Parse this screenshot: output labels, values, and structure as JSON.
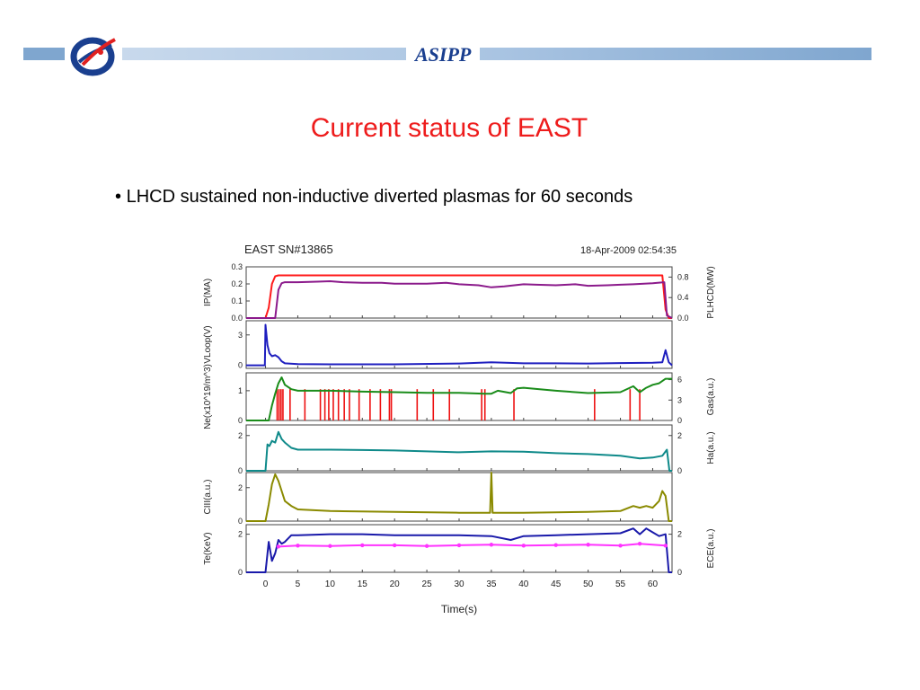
{
  "header": {
    "org": "ASIPP",
    "logo_icon": "asipp-logo-icon",
    "bar_color": "#7fa6cf"
  },
  "slide": {
    "title": "Current status of EAST",
    "bullet_marker": "•",
    "bullet_text": "LHCD sustained non-inductive diverted plasmas for 60 seconds"
  },
  "chart_data": {
    "type": "line",
    "title": "EAST SN#13865",
    "timestamp": "18-Apr-2009 02:54:35",
    "xlabel": "Time(s)",
    "xlim": [
      -3,
      63
    ],
    "x_ticks": [
      0,
      5,
      10,
      15,
      20,
      25,
      30,
      35,
      40,
      45,
      50,
      55,
      60
    ],
    "panels": [
      {
        "left_label": "IP(MA)",
        "right_label": "PLHCD(MW)",
        "left_ticks": [
          "0.0",
          "0.1",
          "0.2",
          "0.3"
        ],
        "right_ticks": [
          "0.0",
          "0.4",
          "0.8"
        ],
        "ylim_left": [
          0,
          0.3
        ],
        "ylim_right": [
          0,
          1.0
        ],
        "series": [
          {
            "axis": "left",
            "color": "#ff1a1a",
            "x": [
              -3,
              0,
              0.5,
              1,
              1.5,
              2,
              2.5,
              3,
              10,
              20,
              30,
              40,
              50,
              60,
              61.5,
              62,
              62.5,
              63
            ],
            "y": [
              0,
              0,
              0.06,
              0.2,
              0.245,
              0.25,
              0.25,
              0.25,
              0.25,
              0.25,
              0.25,
              0.25,
              0.25,
              0.25,
              0.25,
              0.05,
              0,
              0
            ]
          },
          {
            "axis": "right",
            "color": "#8b1a8b",
            "x": [
              -3,
              1.5,
              2,
              2.5,
              3,
              5,
              8,
              10,
              12,
              15,
              18,
              20,
              25,
              28,
              30,
              33,
              35,
              37,
              40,
              42,
              45,
              48,
              50,
              53,
              55,
              57,
              60,
              61.8,
              62.2,
              63
            ],
            "y": [
              0,
              0,
              0.55,
              0.68,
              0.7,
              0.7,
              0.71,
              0.72,
              0.7,
              0.69,
              0.69,
              0.67,
              0.67,
              0.69,
              0.66,
              0.64,
              0.6,
              0.62,
              0.66,
              0.65,
              0.64,
              0.66,
              0.63,
              0.64,
              0.65,
              0.66,
              0.68,
              0.7,
              0.05,
              0
            ]
          }
        ]
      },
      {
        "left_label": "VLoop(V)",
        "right_label": "",
        "left_ticks": [
          "0",
          "3"
        ],
        "right_ticks": [],
        "ylim_left": [
          -0.3,
          4.4
        ],
        "ylim_right": [
          0,
          1
        ],
        "series": [
          {
            "axis": "left",
            "color": "#1f1fbf",
            "x": [
              -3,
              -0.1,
              0,
              0.3,
              0.6,
              1,
              1.5,
              2,
              2.5,
              3,
              5,
              10,
              20,
              30,
              35,
              40,
              45,
              50,
              55,
              60,
              61.5,
              62,
              62.5,
              63
            ],
            "y": [
              0,
              0,
              4.0,
              2.0,
              1.2,
              0.9,
              1.0,
              0.8,
              0.4,
              0.2,
              0.12,
              0.1,
              0.1,
              0.18,
              0.3,
              0.2,
              0.2,
              0.18,
              0.22,
              0.25,
              0.3,
              1.5,
              0.3,
              0
            ]
          }
        ]
      },
      {
        "left_label": "Ne(x10^19/m^3)",
        "right_label": "Gas(a.u.)",
        "left_ticks": [
          "0",
          "1"
        ],
        "right_ticks": [
          "0",
          "3",
          "6"
        ],
        "ylim_left": [
          0,
          1.6
        ],
        "ylim_right": [
          0,
          7
        ],
        "series": [
          {
            "axis": "left",
            "color": "#1a8c1a",
            "x": [
              -3,
              0.5,
              1,
              1.5,
              2,
              2.5,
              3,
              4,
              5,
              10,
              15,
              20,
              25,
              30,
              34,
              35,
              36,
              38,
              39,
              40,
              45,
              50,
              55,
              57,
              58,
              59,
              60,
              61,
              62,
              63
            ],
            "y": [
              0,
              0,
              0.5,
              0.9,
              1.25,
              1.45,
              1.2,
              1.05,
              1.0,
              1.0,
              0.97,
              0.95,
              0.93,
              0.93,
              0.9,
              0.9,
              1.0,
              0.92,
              1.08,
              1.1,
              1.0,
              0.92,
              0.95,
              1.15,
              0.95,
              1.1,
              1.2,
              1.25,
              1.4,
              1.4
            ]
          }
        ],
        "gas_puffs": {
          "color": "#ee1111",
          "x": [
            1.8,
            2.1,
            2.4,
            2.7,
            3.8,
            6.1,
            8.5,
            9.2,
            9.8,
            10.5,
            11.3,
            12.2,
            13.0,
            14.5,
            16.2,
            17.8,
            19.2,
            19.5,
            23.5,
            26.0,
            28.5,
            33.5,
            34.0,
            38.5,
            51.0,
            56.5,
            58.0
          ],
          "height": 4.6
        }
      },
      {
        "left_label": "",
        "right_label": "Ha(a.u.)",
        "left_ticks": [
          "0",
          "2"
        ],
        "right_ticks": [
          "0",
          "2"
        ],
        "ylim_left": [
          0,
          2.6
        ],
        "ylim_right": [
          0,
          2.6
        ],
        "series": [
          {
            "axis": "left",
            "color": "#0f8a8a",
            "x": [
              -3,
              0,
              0.3,
              0.6,
              1,
              1.5,
              2,
              2.5,
              3,
              4,
              5,
              10,
              15,
              20,
              25,
              30,
              35,
              40,
              45,
              50,
              55,
              58,
              60,
              61.5,
              62.2,
              62.6,
              63
            ],
            "y": [
              0,
              0,
              1.5,
              1.4,
              1.7,
              1.6,
              2.2,
              1.8,
              1.6,
              1.3,
              1.2,
              1.2,
              1.18,
              1.15,
              1.1,
              1.05,
              1.1,
              1.08,
              1.0,
              0.95,
              0.85,
              0.7,
              0.75,
              0.85,
              1.2,
              0,
              0
            ]
          }
        ]
      },
      {
        "left_label": "CIII(a.u.)",
        "right_label": "",
        "left_ticks": [
          "0",
          "2"
        ],
        "right_ticks": [],
        "ylim_left": [
          0,
          2.9
        ],
        "ylim_right": [
          0,
          1
        ],
        "series": [
          {
            "axis": "left",
            "color": "#8a8a00",
            "x": [
              -3,
              0,
              0.5,
              1,
              1.5,
              2,
              2.5,
              3,
              4,
              5,
              10,
              20,
              30,
              34.8,
              35,
              35.2,
              40,
              50,
              55,
              57,
              58,
              59,
              60,
              61,
              61.5,
              62,
              62.5,
              63
            ],
            "y": [
              0,
              0,
              1.0,
              2.2,
              2.8,
              2.4,
              1.8,
              1.2,
              0.9,
              0.7,
              0.6,
              0.55,
              0.5,
              0.5,
              2.9,
              0.5,
              0.5,
              0.55,
              0.6,
              0.9,
              0.8,
              0.9,
              0.8,
              1.2,
              1.8,
              1.5,
              0,
              0
            ]
          }
        ]
      },
      {
        "left_label": "Te(KeV)",
        "right_label": "ECE(a.u.)",
        "left_ticks": [
          "0",
          "2"
        ],
        "right_ticks": [
          "0",
          "2"
        ],
        "ylim_left": [
          0,
          2.5
        ],
        "ylim_right": [
          0,
          2.5
        ],
        "series": [
          {
            "axis": "left",
            "color": "#1a1aaa",
            "x": [
              -3,
              0,
              0.5,
              1,
              1.5,
              2,
              2.5,
              3,
              4,
              5,
              10,
              15,
              20,
              25,
              30,
              35,
              38,
              40,
              45,
              50,
              55,
              57,
              58,
              59,
              60,
              61,
              62,
              62.5,
              63
            ],
            "y": [
              0,
              0,
              1.6,
              0.6,
              1.0,
              1.7,
              1.5,
              1.6,
              1.95,
              1.95,
              2.0,
              2.0,
              1.95,
              1.95,
              1.95,
              1.9,
              1.7,
              1.9,
              1.95,
              2.0,
              2.05,
              2.3,
              2.0,
              2.3,
              2.1,
              1.9,
              2.0,
              0,
              0
            ]
          },
          {
            "axis": "left",
            "color": "#ff33ff",
            "markers": true,
            "x": [
              2,
              5,
              10,
              15,
              20,
              25,
              30,
              35,
              40,
              45,
              50,
              55,
              58,
              62
            ],
            "y": [
              1.35,
              1.4,
              1.38,
              1.42,
              1.42,
              1.38,
              1.42,
              1.45,
              1.4,
              1.43,
              1.45,
              1.4,
              1.5,
              1.4
            ]
          }
        ]
      }
    ]
  }
}
